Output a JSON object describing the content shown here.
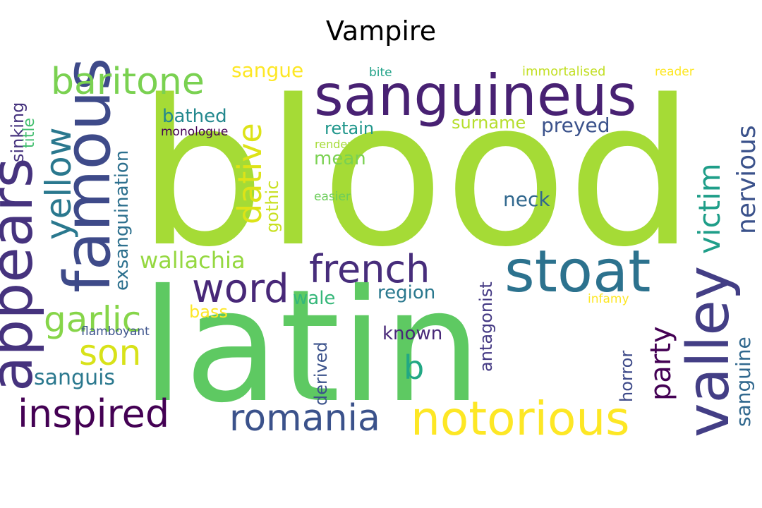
{
  "title": "Vampire",
  "words": [
    {
      "text": "blood",
      "color": "#a5db36",
      "rotate": false
    },
    {
      "text": "latin",
      "color": "#5ec962",
      "rotate": false
    },
    {
      "text": "sanguineus",
      "color": "#482173",
      "rotate": false
    },
    {
      "text": "famous",
      "color": "#3e4a89",
      "rotate": true
    },
    {
      "text": "appears",
      "color": "#46337e",
      "rotate": true
    },
    {
      "text": "stoat",
      "color": "#2c728e",
      "rotate": false
    },
    {
      "text": "valley",
      "color": "#433e85",
      "rotate": true
    },
    {
      "text": "notorious",
      "color": "#fde725",
      "rotate": false
    },
    {
      "text": "baritone",
      "color": "#7ad151",
      "rotate": false
    },
    {
      "text": "word",
      "color": "#482878",
      "rotate": false
    },
    {
      "text": "french",
      "color": "#472d7b",
      "rotate": false
    },
    {
      "text": "romania",
      "color": "#3b528b",
      "rotate": false
    },
    {
      "text": "inspired",
      "color": "#440154",
      "rotate": false
    },
    {
      "text": "yellow",
      "color": "#2a788e",
      "rotate": true
    },
    {
      "text": "garlic",
      "color": "#86d549",
      "rotate": false
    },
    {
      "text": "son",
      "color": "#d8e219",
      "rotate": false
    },
    {
      "text": "dative",
      "color": "#dde318",
      "rotate": true
    },
    {
      "text": "victim",
      "color": "#1f9e89",
      "rotate": true
    },
    {
      "text": "nervious",
      "color": "#3b528b",
      "rotate": true
    },
    {
      "text": "party",
      "color": "#440154",
      "rotate": true
    },
    {
      "text": "b",
      "color": "#22a884",
      "rotate": false
    },
    {
      "text": "sanguine",
      "color": "#31688e",
      "rotate": true
    },
    {
      "text": "exsanguination",
      "color": "#2d708e",
      "rotate": true
    },
    {
      "text": "wallachia",
      "color": "#95d840",
      "rotate": false
    },
    {
      "text": "sanguis",
      "color": "#2a788e",
      "rotate": false
    },
    {
      "text": "sangue",
      "color": "#fde725",
      "rotate": false
    },
    {
      "text": "bathed",
      "color": "#23888e",
      "rotate": false
    },
    {
      "text": "retain",
      "color": "#1f968b",
      "rotate": false
    },
    {
      "text": "surname",
      "color": "#b5de2b",
      "rotate": false
    },
    {
      "text": "preyed",
      "color": "#3b528b",
      "rotate": false
    },
    {
      "text": "mean",
      "color": "#7ad151",
      "rotate": false
    },
    {
      "text": "neck",
      "color": "#31688e",
      "rotate": false
    },
    {
      "text": "region",
      "color": "#2a788e",
      "rotate": false
    },
    {
      "text": "wale",
      "color": "#35b779",
      "rotate": false
    },
    {
      "text": "bass",
      "color": "#fde725",
      "rotate": false
    },
    {
      "text": "known",
      "color": "#482878",
      "rotate": false
    },
    {
      "text": "antagonist",
      "color": "#443983",
      "rotate": true
    },
    {
      "text": "horror",
      "color": "#3e4a89",
      "rotate": true
    },
    {
      "text": "derived",
      "color": "#3b528b",
      "rotate": true
    },
    {
      "text": "gothic",
      "color": "#c8e020",
      "rotate": true
    },
    {
      "text": "sinking",
      "color": "#46337e",
      "rotate": true
    },
    {
      "text": "title",
      "color": "#44bf70",
      "rotate": true
    },
    {
      "text": "monologue",
      "color": "#440154",
      "rotate": false
    },
    {
      "text": "render",
      "color": "#a5db36",
      "rotate": false
    },
    {
      "text": "easier",
      "color": "#6ccd5a",
      "rotate": false
    },
    {
      "text": "bite",
      "color": "#1fa187",
      "rotate": false
    },
    {
      "text": "immortalised",
      "color": "#c2df23",
      "rotate": false
    },
    {
      "text": "reader",
      "color": "#fde725",
      "rotate": false
    },
    {
      "text": "infamy",
      "color": "#fde725",
      "rotate": false
    },
    {
      "text": "flamboyant",
      "color": "#3b528b",
      "rotate": false
    }
  ]
}
